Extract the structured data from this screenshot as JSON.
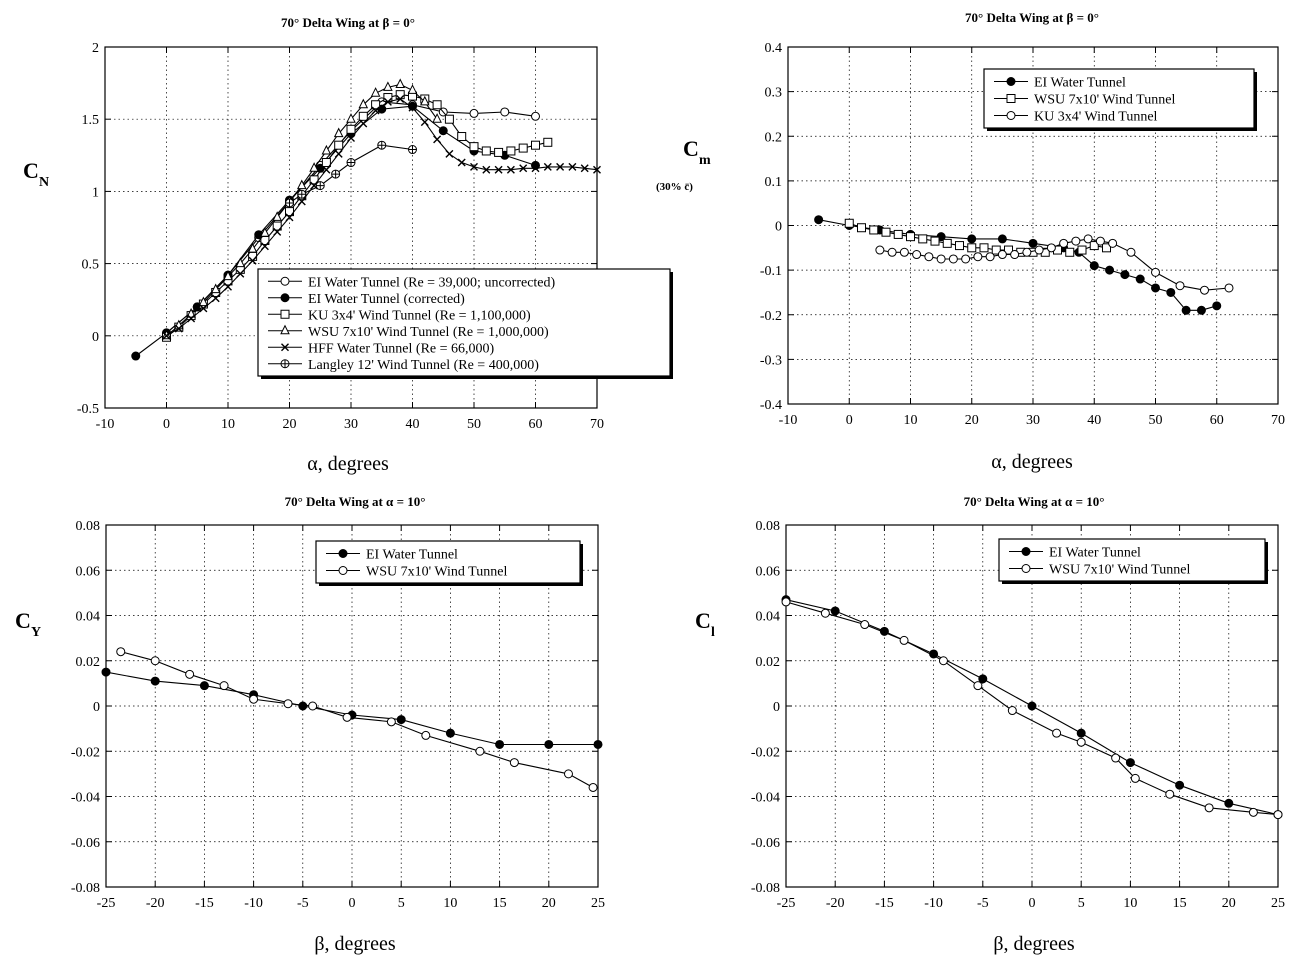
{
  "figure": {
    "panels": [
      {
        "title": "70° Delta Wing at β = 0°",
        "xlabel": "α, degrees",
        "ylabel_main": "C",
        "ylabel_sub": "N",
        "ynote": ""
      },
      {
        "title": "70° Delta Wing at β = 0°",
        "xlabel": "α, degrees",
        "ylabel_main": "C",
        "ylabel_sub": "m",
        "ynote": "(30% c̄)"
      },
      {
        "title": "70° Delta Wing at α = 10°",
        "xlabel": "β, degrees",
        "ylabel_main": "C",
        "ylabel_sub": "Y",
        "ynote": ""
      },
      {
        "title": "70° Delta Wing at α = 10°",
        "xlabel": "β, degrees",
        "ylabel_main": "C",
        "ylabel_sub": "l",
        "ynote": ""
      }
    ]
  },
  "chart_data": [
    {
      "type": "line",
      "title": "70° Delta Wing at β = 0°",
      "xlabel": "α, degrees",
      "ylabel": "C_N",
      "xlim": [
        -10,
        70
      ],
      "ylim": [
        -0.5,
        2
      ],
      "xticks": [
        -10,
        0,
        10,
        20,
        30,
        40,
        50,
        60,
        70
      ],
      "yticks": [
        -0.5,
        0,
        0.5,
        1,
        1.5,
        2
      ],
      "tick_labels_x": [
        "-10",
        "0",
        "10",
        "20",
        "30",
        "40",
        "50",
        "60",
        "70"
      ],
      "tick_labels_y": [
        "-0.5",
        "0",
        "0.5",
        "1",
        "1.5",
        "2"
      ],
      "grid": true,
      "legend_position": "bottom-right",
      "series": [
        {
          "name": "EI Water Tunnel (Re = 39,000; uncorrected)",
          "marker": "circle-open",
          "x": [
            0,
            5,
            10,
            15,
            20,
            25,
            30,
            35,
            40,
            45,
            50,
            55,
            60
          ],
          "y": [
            0.02,
            0.2,
            0.42,
            0.68,
            0.93,
            1.18,
            1.42,
            1.62,
            1.6,
            1.55,
            1.54,
            1.55,
            1.52
          ]
        },
        {
          "name": "EI Water Tunnel (corrected)",
          "marker": "circle-filled",
          "x": [
            -5,
            0,
            5,
            10,
            15,
            20,
            25,
            30,
            35,
            40,
            45,
            50,
            55,
            60
          ],
          "y": [
            -0.14,
            0.02,
            0.2,
            0.42,
            0.7,
            0.94,
            1.16,
            1.4,
            1.57,
            1.59,
            1.42,
            1.28,
            1.25,
            1.18
          ]
        },
        {
          "name": "KU 3x4' Wind Tunnel (Re = 1,100,000)",
          "marker": "square-open",
          "x": [
            0,
            2,
            4,
            6,
            8,
            10,
            12,
            14,
            16,
            18,
            20,
            22,
            24,
            26,
            28,
            30,
            32,
            34,
            36,
            38,
            40,
            42,
            44,
            46,
            48,
            50,
            52,
            54,
            56,
            58,
            60,
            62
          ],
          "y": [
            -0.01,
            0.06,
            0.14,
            0.22,
            0.3,
            0.38,
            0.46,
            0.55,
            0.66,
            0.76,
            0.86,
            0.97,
            1.08,
            1.2,
            1.32,
            1.43,
            1.52,
            1.6,
            1.65,
            1.67,
            1.66,
            1.64,
            1.6,
            1.5,
            1.38,
            1.31,
            1.28,
            1.27,
            1.28,
            1.3,
            1.32,
            1.34
          ]
        },
        {
          "name": "WSU 7x10' Wind Tunnel (Re = 1,000,000)",
          "marker": "triangle-open",
          "x": [
            0,
            2,
            4,
            6,
            8,
            10,
            12,
            14,
            16,
            18,
            20,
            22,
            24,
            26,
            28,
            30,
            32,
            34,
            36,
            38,
            40,
            42,
            44
          ],
          "y": [
            0.0,
            0.07,
            0.15,
            0.23,
            0.32,
            0.41,
            0.5,
            0.6,
            0.71,
            0.82,
            0.93,
            1.04,
            1.16,
            1.28,
            1.4,
            1.5,
            1.6,
            1.68,
            1.72,
            1.74,
            1.7,
            1.62,
            1.5
          ]
        },
        {
          "name": "HFF Water Tunnel (Re = 66,000)",
          "marker": "x",
          "x": [
            0,
            2,
            4,
            6,
            8,
            10,
            12,
            14,
            16,
            18,
            20,
            22,
            24,
            26,
            28,
            30,
            32,
            34,
            36,
            38,
            40,
            42,
            44,
            46,
            48,
            50,
            52,
            54,
            56,
            58,
            60,
            62,
            64,
            66,
            68,
            70
          ],
          "y": [
            0.0,
            0.05,
            0.12,
            0.19,
            0.26,
            0.34,
            0.43,
            0.52,
            0.62,
            0.72,
            0.82,
            0.93,
            1.04,
            1.15,
            1.26,
            1.37,
            1.47,
            1.56,
            1.62,
            1.64,
            1.58,
            1.48,
            1.36,
            1.26,
            1.2,
            1.17,
            1.15,
            1.15,
            1.15,
            1.16,
            1.16,
            1.17,
            1.17,
            1.17,
            1.16,
            1.15
          ]
        },
        {
          "name": "Langley 12' Wind Tunnel (Re = 400,000)",
          "marker": "circle-cross",
          "x": [
            20,
            22,
            25,
            27.5,
            30,
            35,
            40
          ],
          "y": [
            0.92,
            0.98,
            1.04,
            1.12,
            1.2,
            1.32,
            1.29
          ]
        }
      ]
    },
    {
      "type": "line",
      "title": "70° Delta Wing at β = 0°",
      "xlabel": "α, degrees",
      "ylabel": "C_m (30% c̄)",
      "xlim": [
        -10,
        70
      ],
      "ylim": [
        -0.4,
        0.4
      ],
      "xticks": [
        -10,
        0,
        10,
        20,
        30,
        40,
        50,
        60,
        70
      ],
      "yticks": [
        -0.4,
        -0.3,
        -0.2,
        -0.1,
        0,
        0.1,
        0.2,
        0.3,
        0.4
      ],
      "tick_labels_x": [
        "-10",
        "0",
        "10",
        "20",
        "30",
        "40",
        "50",
        "60",
        "70"
      ],
      "tick_labels_y": [
        "-0.4",
        "-0.3",
        "-0.2",
        "-0.1",
        "0",
        "0.1",
        "0.2",
        "0.3",
        "0.4"
      ],
      "grid": true,
      "legend_position": "top-right",
      "series": [
        {
          "name": "EI Water Tunnel",
          "marker": "circle-filled",
          "x": [
            -5,
            0,
            5,
            10,
            15,
            20,
            25,
            30,
            35,
            37.5,
            40,
            42.5,
            45,
            47.5,
            50,
            52.5,
            55,
            57.5,
            60
          ],
          "y": [
            0.013,
            0.0,
            -0.01,
            -0.02,
            -0.025,
            -0.03,
            -0.03,
            -0.04,
            -0.05,
            -0.06,
            -0.09,
            -0.1,
            -0.11,
            -0.12,
            -0.14,
            -0.15,
            -0.19,
            -0.19,
            -0.18
          ]
        },
        {
          "name": "WSU 7x10' Wind Tunnel",
          "marker": "square-open",
          "x": [
            0,
            2,
            4,
            6,
            8,
            10,
            12,
            14,
            16,
            18,
            20,
            22,
            24,
            26,
            28,
            30,
            32,
            34,
            36,
            38,
            40,
            42
          ],
          "y": [
            0.005,
            -0.005,
            -0.01,
            -0.015,
            -0.02,
            -0.025,
            -0.03,
            -0.035,
            -0.04,
            -0.045,
            -0.05,
            -0.05,
            -0.055,
            -0.055,
            -0.06,
            -0.06,
            -0.06,
            -0.055,
            -0.06,
            -0.055,
            -0.045,
            -0.05
          ]
        },
        {
          "name": "KU 3x4' Wind Tunnel",
          "marker": "circle-open",
          "x": [
            5,
            7,
            9,
            11,
            13,
            15,
            17,
            19,
            21,
            23,
            25,
            27,
            29,
            31,
            33,
            35,
            37,
            39,
            41,
            43,
            46,
            50,
            54,
            58,
            62
          ],
          "y": [
            -0.055,
            -0.06,
            -0.06,
            -0.065,
            -0.07,
            -0.075,
            -0.075,
            -0.075,
            -0.07,
            -0.07,
            -0.065,
            -0.065,
            -0.06,
            -0.055,
            -0.05,
            -0.04,
            -0.035,
            -0.03,
            -0.035,
            -0.04,
            -0.06,
            -0.105,
            -0.135,
            -0.145,
            -0.14
          ]
        }
      ]
    },
    {
      "type": "line",
      "title": "70° Delta Wing at α = 10°",
      "xlabel": "β, degrees",
      "ylabel": "C_Y",
      "xlim": [
        -25,
        25
      ],
      "ylim": [
        -0.08,
        0.08
      ],
      "xticks": [
        -25,
        -20,
        -15,
        -10,
        -5,
        0,
        5,
        10,
        15,
        20,
        25
      ],
      "yticks": [
        -0.08,
        -0.06,
        -0.04,
        -0.02,
        0,
        0.02,
        0.04,
        0.06,
        0.08
      ],
      "tick_labels_x": [
        "-25",
        "-20",
        "-15",
        "-10",
        "-5",
        "0",
        "5",
        "10",
        "15",
        "20",
        "25"
      ],
      "tick_labels_y": [
        "-0.08",
        "-0.06",
        "-0.04",
        "-0.02",
        "0",
        "0.02",
        "0.04",
        "0.06",
        "0.08"
      ],
      "grid": true,
      "legend_position": "top-right",
      "series": [
        {
          "name": "EI Water Tunnel",
          "marker": "circle-filled",
          "x": [
            -25,
            -20,
            -15,
            -10,
            -5,
            0,
            5,
            10,
            15,
            20,
            25
          ],
          "y": [
            0.015,
            0.011,
            0.009,
            0.005,
            0.0,
            -0.004,
            -0.006,
            -0.012,
            -0.017,
            -0.017,
            -0.017
          ]
        },
        {
          "name": "WSU 7x10' Wind Tunnel",
          "marker": "circle-open",
          "x": [
            -23.5,
            -20,
            -16.5,
            -13,
            -10,
            -6.5,
            -4,
            -0.5,
            4,
            7.5,
            13,
            16.5,
            22,
            24.5
          ],
          "y": [
            0.024,
            0.02,
            0.014,
            0.009,
            0.003,
            0.001,
            0.0,
            -0.005,
            -0.007,
            -0.013,
            -0.02,
            -0.025,
            -0.03,
            -0.036
          ]
        }
      ]
    },
    {
      "type": "line",
      "title": "70° Delta Wing at α = 10°",
      "xlabel": "β, degrees",
      "ylabel": "C_l",
      "xlim": [
        -25,
        25
      ],
      "ylim": [
        -0.08,
        0.08
      ],
      "xticks": [
        -25,
        -20,
        -15,
        -10,
        -5,
        0,
        5,
        10,
        15,
        20,
        25
      ],
      "yticks": [
        -0.08,
        -0.06,
        -0.04,
        -0.02,
        0,
        0.02,
        0.04,
        0.06,
        0.08
      ],
      "tick_labels_x": [
        "-25",
        "-20",
        "-15",
        "-10",
        "-5",
        "0",
        "5",
        "10",
        "15",
        "20",
        "25"
      ],
      "tick_labels_y": [
        "-0.08",
        "-0.06",
        "-0.04",
        "-0.02",
        "0",
        "0.02",
        "0.04",
        "0.06",
        "0.08"
      ],
      "grid": true,
      "legend_position": "top-right",
      "series": [
        {
          "name": "EI Water Tunnel",
          "marker": "circle-filled",
          "x": [
            -25,
            -20,
            -15,
            -10,
            -5,
            0,
            5,
            10,
            15,
            20,
            25
          ],
          "y": [
            0.047,
            0.042,
            0.033,
            0.023,
            0.012,
            0.0,
            -0.012,
            -0.025,
            -0.035,
            -0.043,
            -0.048
          ]
        },
        {
          "name": "WSU 7x10' Wind Tunnel",
          "marker": "circle-open",
          "x": [
            -25,
            -21,
            -17,
            -13,
            -9,
            -5.5,
            -2,
            2.5,
            5,
            8.5,
            10.5,
            14,
            18,
            22.5,
            25
          ],
          "y": [
            0.046,
            0.041,
            0.036,
            0.029,
            0.02,
            0.009,
            -0.002,
            -0.012,
            -0.016,
            -0.023,
            -0.032,
            -0.039,
            -0.045,
            -0.047,
            -0.048
          ]
        }
      ]
    }
  ]
}
